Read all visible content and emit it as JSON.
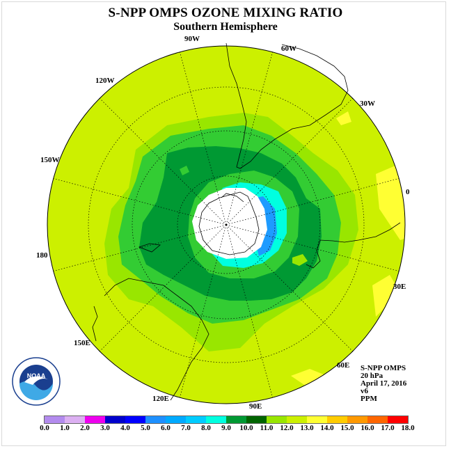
{
  "header": {
    "title": "S-NPP OMPS OZONE MIXING RATIO",
    "subtitle": "Southern Hemisphere"
  },
  "longitude_labels": [
    "90W",
    "60W",
    "120W",
    "30W",
    "150W",
    "0",
    "180",
    "30E",
    "150E",
    "60E",
    "120E",
    "90E"
  ],
  "info": {
    "instrument": "S-NPP OMPS",
    "level": "20 hPa",
    "date": "April 17, 2016",
    "version": "v6",
    "units": "PPM"
  },
  "logo": {
    "text": "NOAA",
    "ring_text": "NATIONAL OCEANIC AND ATMOSPHERIC ADMINISTRATION",
    "ring_text_bottom": "U.S. DEPARTMENT OF COMMERCE"
  },
  "colorbar": {
    "colors": [
      "#b38bee",
      "#dcb0f2",
      "#ee00ee",
      "#9400d3",
      "#0000ff",
      "#1e90ff",
      "#00aaff",
      "#00ccff",
      "#00ffee",
      "#009933",
      "#006400",
      "#00cc00",
      "#99e600",
      "#ccff00",
      "#ffff00",
      "#ffc000",
      "#ff9900",
      "#ff6600",
      "#ff0000",
      "#cc0000",
      "#8b5a2b"
    ],
    "tick_labels": [
      "0.0",
      "1.0",
      "2.0",
      "3.0",
      "4.0",
      "5.0",
      "6.0",
      "7.0",
      "8.0",
      "9.0",
      "10.0",
      "11.0",
      "12.0",
      "13.0",
      "14.0",
      "15.0",
      "16.0",
      "17.0",
      "18.0"
    ]
  },
  "field_colors": {
    "background": "#ccf000",
    "level_11": "#99e600",
    "level_10": "#33cc33",
    "level_9": "#009933",
    "level_8": "#006e35",
    "level_7": "#00ffe0",
    "level_6": "#1e9bff",
    "missing": "#ffffff",
    "high_13": "#ffff33"
  }
}
